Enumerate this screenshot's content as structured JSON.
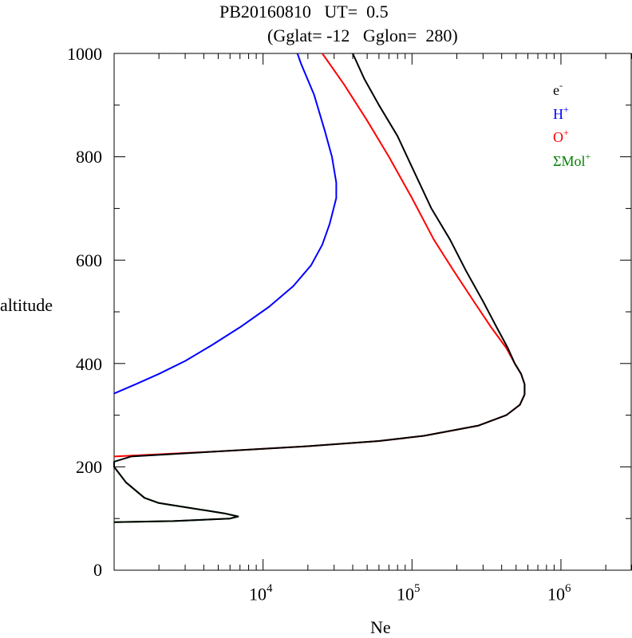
{
  "title_line1": "PB20160810   UT=  0.5",
  "title_line2": "(Gglat= -12   Gglon=  280)",
  "chart_data": {
    "type": "line",
    "xlabel": "Ne",
    "ylabel": "altitude",
    "x_scale": "log",
    "xlim": [
      1000,
      3000000
    ],
    "ylim": [
      0,
      1000
    ],
    "x_ticks": [
      {
        "value": 10000,
        "base": "10",
        "exp": "4"
      },
      {
        "value": 100000,
        "base": "10",
        "exp": "5"
      },
      {
        "value": 1000000,
        "base": "10",
        "exp": "6"
      }
    ],
    "y_ticks": [
      0,
      200,
      400,
      600,
      800,
      1000
    ],
    "legend_position": "top-right",
    "series": [
      {
        "name": "e",
        "sup": "-",
        "color": "#000000",
        "points": [
          [
            1000,
            93
          ],
          [
            2500,
            95
          ],
          [
            6000,
            100
          ],
          [
            6800,
            104
          ],
          [
            5500,
            110
          ],
          [
            2000,
            130
          ],
          [
            1600,
            140
          ],
          [
            1200,
            170
          ],
          [
            1000,
            200
          ],
          [
            1000,
            210
          ],
          [
            1300,
            220
          ],
          [
            5000,
            230
          ],
          [
            20000,
            240
          ],
          [
            60000,
            250
          ],
          [
            120000,
            260
          ],
          [
            280000,
            280
          ],
          [
            430000,
            300
          ],
          [
            530000,
            320
          ],
          [
            570000,
            340
          ],
          [
            570000,
            360
          ],
          [
            540000,
            380
          ],
          [
            490000,
            400
          ],
          [
            440000,
            430
          ],
          [
            370000,
            470
          ],
          [
            300000,
            520
          ],
          [
            230000,
            580
          ],
          [
            180000,
            640
          ],
          [
            135000,
            700
          ],
          [
            100000,
            780
          ],
          [
            80000,
            840
          ],
          [
            60000,
            900
          ],
          [
            48000,
            950
          ],
          [
            40000,
            1000
          ]
        ]
      },
      {
        "name": "H",
        "sup": "+",
        "color": "#0000ff",
        "points": [
          [
            1000,
            342
          ],
          [
            1400,
            360
          ],
          [
            2000,
            380
          ],
          [
            3000,
            405
          ],
          [
            4500,
            435
          ],
          [
            7000,
            470
          ],
          [
            11000,
            510
          ],
          [
            16000,
            550
          ],
          [
            21000,
            590
          ],
          [
            25000,
            630
          ],
          [
            28000,
            670
          ],
          [
            31000,
            720
          ],
          [
            31000,
            750
          ],
          [
            29000,
            800
          ],
          [
            26000,
            850
          ],
          [
            22000,
            920
          ],
          [
            18000,
            980
          ],
          [
            17000,
            1000
          ]
        ]
      },
      {
        "name": "O",
        "sup": "+",
        "color": "#ff0000",
        "points": [
          [
            1000,
            220
          ],
          [
            5000,
            230
          ],
          [
            20000,
            240
          ],
          [
            60000,
            250
          ],
          [
            120000,
            260
          ],
          [
            280000,
            280
          ],
          [
            430000,
            300
          ],
          [
            530000,
            320
          ],
          [
            570000,
            340
          ],
          [
            570000,
            360
          ],
          [
            540000,
            380
          ],
          [
            490000,
            400
          ],
          [
            430000,
            430
          ],
          [
            340000,
            470
          ],
          [
            260000,
            520
          ],
          [
            190000,
            580
          ],
          [
            140000,
            640
          ],
          [
            100000,
            720
          ],
          [
            70000,
            800
          ],
          [
            50000,
            870
          ],
          [
            35000,
            940
          ],
          [
            25000,
            1000
          ]
        ]
      },
      {
        "name": "ΣMol",
        "sup": "+",
        "color": "#008000",
        "points": [
          [
            1000,
            93
          ],
          [
            2500,
            95
          ],
          [
            6000,
            100
          ],
          [
            6800,
            104
          ],
          [
            5500,
            110
          ],
          [
            2000,
            130
          ],
          [
            1600,
            140
          ],
          [
            1200,
            170
          ],
          [
            1000,
            200
          ]
        ]
      }
    ]
  }
}
